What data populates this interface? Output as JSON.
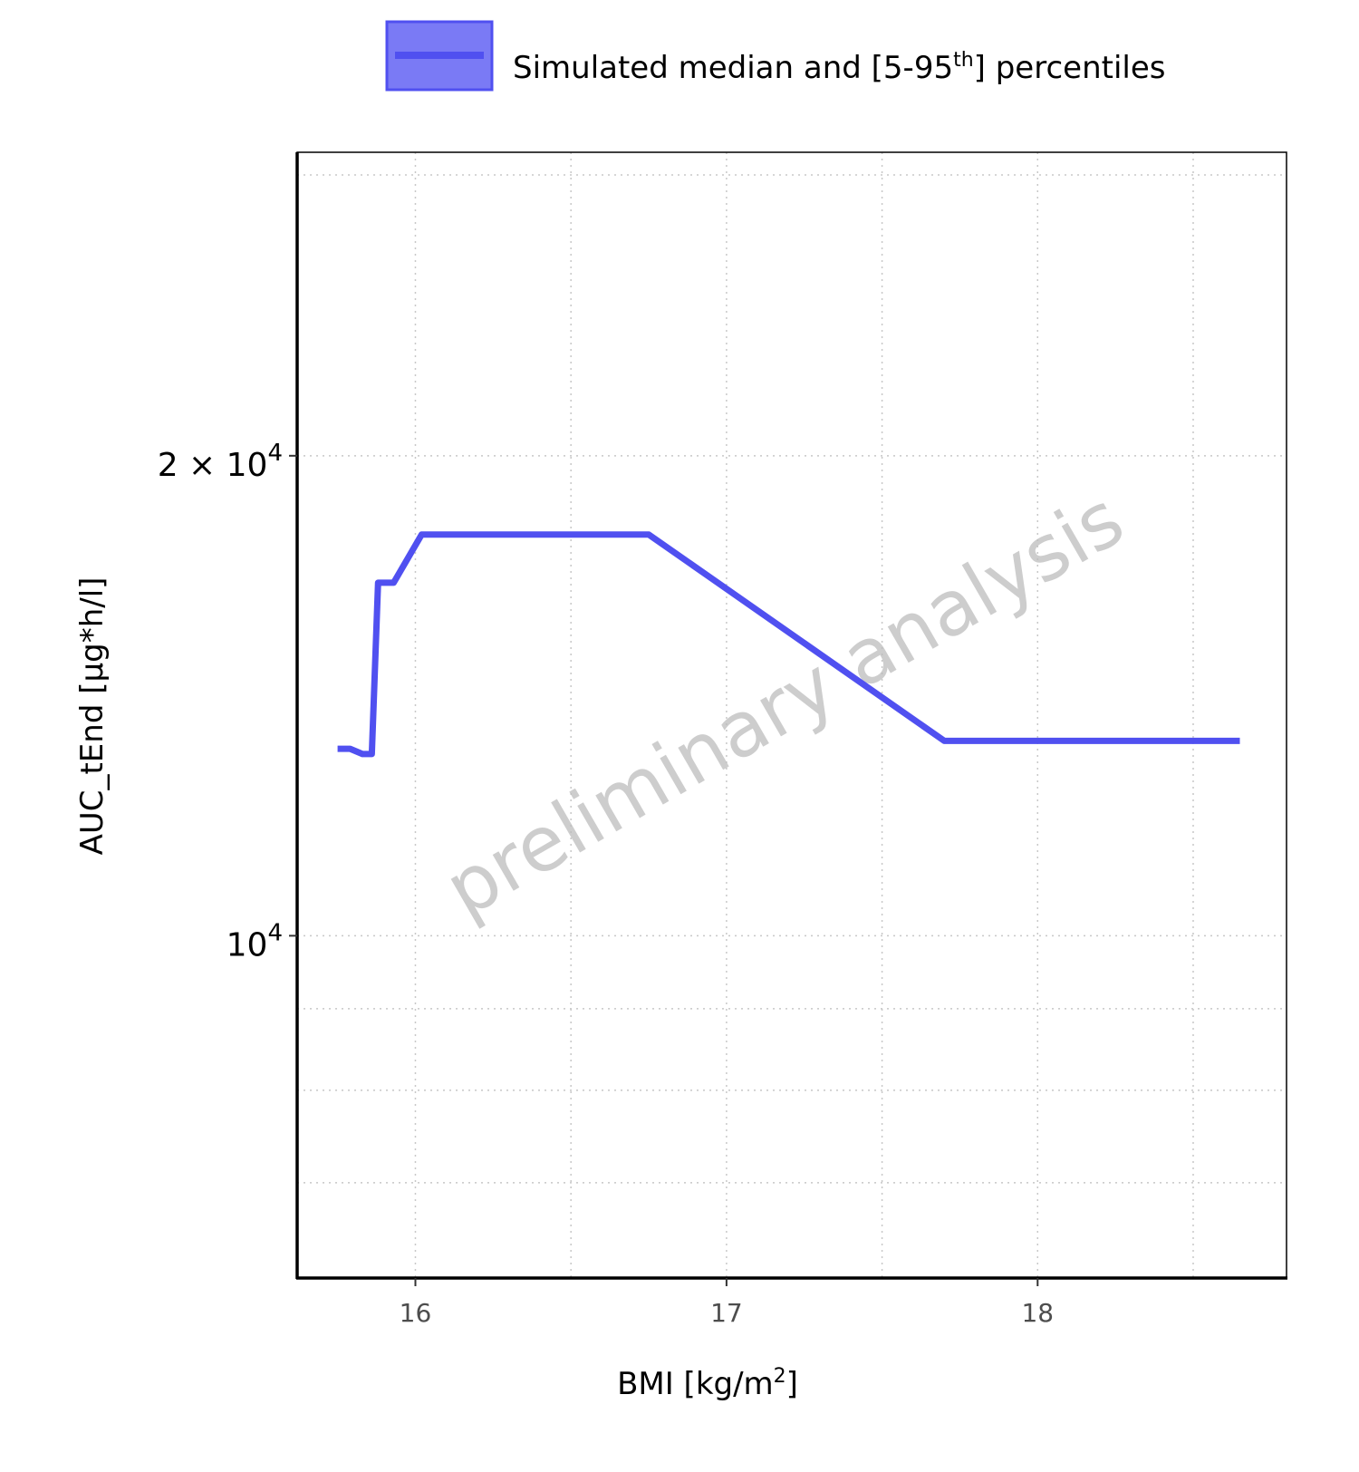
{
  "chart_data": {
    "type": "line",
    "xlabel_main": "BMI [kg/m",
    "xlabel_sup": "2",
    "xlabel_end": "]",
    "ylabel": "AUC_tEnd [µg*h/l]",
    "y_scale": "log",
    "xlim": [
      15.62,
      18.8
    ],
    "ylim": [
      6100,
      31000
    ],
    "x_ticks": [
      16,
      17,
      18
    ],
    "x_tick_labels": [
      "16",
      "17",
      "18"
    ],
    "y_ticks": [
      {
        "value": 20000,
        "mantissa": "2",
        "times": "×",
        "base": "10",
        "exp": "4"
      },
      {
        "value": 10000,
        "mantissa": "",
        "times": "",
        "base": "10",
        "exp": "4"
      }
    ],
    "y_minor_grid": [
      7000,
      8000,
      9000,
      30000
    ],
    "x_minor_grid": [
      16.5,
      17.5,
      18.5
    ],
    "grid": true,
    "legend_position": "top",
    "legend": {
      "label_main": "Simulated median and [5-95",
      "label_sup": "th",
      "label_end": "] percentiles",
      "line_color": "#5050f0",
      "fill_color": "#7a7af5"
    },
    "watermark": "preliminary analysis",
    "series": [
      {
        "color": "#5050f0",
        "x": [
          15.75,
          15.79,
          15.83,
          15.86,
          15.88,
          15.91,
          15.93,
          16.02,
          16.75,
          17.7,
          18.65
        ],
        "y": [
          13100,
          13100,
          13000,
          13000,
          16650,
          16650,
          16650,
          17850,
          17850,
          13250,
          13250
        ]
      }
    ]
  }
}
